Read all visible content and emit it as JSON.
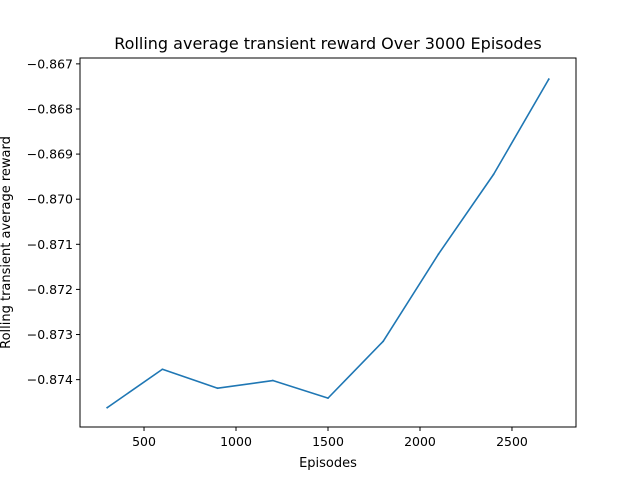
{
  "chart_data": {
    "type": "line",
    "title": "Rolling average transient reward Over 3000 Episodes",
    "xlabel": "Episodes",
    "ylabel": "Rolling transient average reward",
    "xlim": [
      152,
      2848
    ],
    "ylim": [
      -0.87505,
      -0.86687
    ],
    "x_ticks": [
      500,
      1000,
      1500,
      2000,
      2500
    ],
    "x_tick_labels": [
      "500",
      "1000",
      "1500",
      "2000",
      "2500"
    ],
    "y_ticks": [
      -0.874,
      -0.873,
      -0.872,
      -0.871,
      -0.87,
      -0.869,
      -0.868,
      -0.867
    ],
    "y_tick_labels": [
      "−0.874",
      "−0.873",
      "−0.872",
      "−0.871",
      "−0.870",
      "−0.869",
      "−0.868",
      "−0.867"
    ],
    "grid": false,
    "series": [
      {
        "color": "#1f77b4",
        "x": [
          300,
          600,
          900,
          1200,
          1500,
          1800,
          2100,
          2400,
          2700
        ],
        "y": [
          -0.87462,
          -0.87377,
          -0.87419,
          -0.87402,
          -0.87441,
          -0.87315,
          -0.87122,
          -0.86945,
          -0.86734
        ]
      }
    ]
  }
}
